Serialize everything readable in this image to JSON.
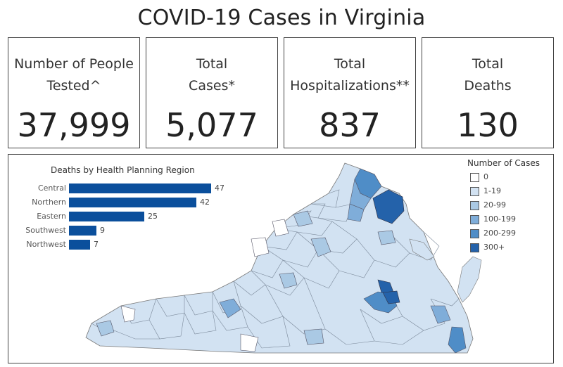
{
  "page": {
    "title": "COVID-19 Cases in Virginia"
  },
  "kpis": [
    {
      "label": "Number of People\nTested^",
      "value": "37,999"
    },
    {
      "label": "Total\nCases*",
      "value": "5,077"
    },
    {
      "label": "Total\nHospitalizations**",
      "value": "837"
    },
    {
      "label": "Total\nDeaths",
      "value": "130"
    }
  ],
  "chart_data": {
    "type": "bar",
    "title": "Deaths by Health Planning Region",
    "categories": [
      "Central",
      "Northern",
      "Eastern",
      "Southwest",
      "Northwest"
    ],
    "values": [
      47,
      42,
      25,
      9,
      7
    ],
    "orientation": "horizontal",
    "xlim": [
      0,
      47
    ],
    "grid": false,
    "bar_color": "#0b4f9c"
  },
  "legend": {
    "title": "Number of Cases",
    "items": [
      {
        "label": "0",
        "color": "#ffffff"
      },
      {
        "label": "1-19",
        "color": "#d2e2f2"
      },
      {
        "label": "20-99",
        "color": "#aac9e4"
      },
      {
        "label": "100-199",
        "color": "#7fadd9"
      },
      {
        "label": "200-299",
        "color": "#4f8dc7"
      },
      {
        "label": "300+",
        "color": "#2462aa"
      }
    ]
  }
}
